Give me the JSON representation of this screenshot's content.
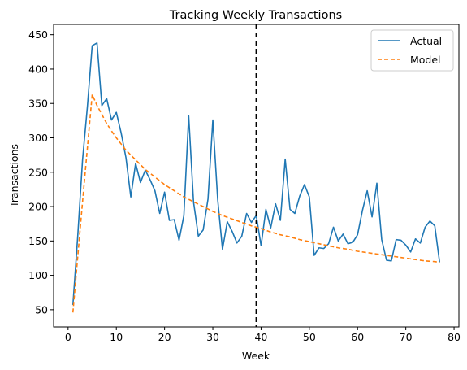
{
  "chart_data": {
    "type": "line",
    "title": "Tracking Weekly Transactions",
    "xlabel": "Week",
    "ylabel": "Transactions",
    "xlim": [
      -3,
      81
    ],
    "ylim": [
      25,
      465
    ],
    "xticks": [
      0,
      10,
      20,
      30,
      40,
      50,
      60,
      70,
      80
    ],
    "yticks": [
      50,
      100,
      150,
      200,
      250,
      300,
      350,
      400,
      450
    ],
    "grid": false,
    "legend_position": "top-right",
    "vline": {
      "x": 39,
      "style": "dashed",
      "color": "#000000"
    },
    "series": [
      {
        "name": "Actual",
        "style": "solid",
        "color": "#1f77b4",
        "x": [
          1,
          2,
          3,
          4,
          5,
          6,
          7,
          8,
          9,
          10,
          11,
          12,
          13,
          14,
          15,
          16,
          17,
          18,
          19,
          20,
          21,
          22,
          23,
          24,
          25,
          26,
          27,
          28,
          29,
          30,
          31,
          32,
          33,
          34,
          35,
          36,
          37,
          38,
          39,
          40,
          41,
          42,
          43,
          44,
          45,
          46,
          47,
          48,
          49,
          50,
          51,
          52,
          53,
          54,
          55,
          56,
          57,
          58,
          59,
          60,
          61,
          62,
          63,
          64,
          65,
          66,
          67,
          68,
          69,
          70,
          71,
          72,
          73,
          74,
          75,
          76,
          77
        ],
        "values": [
          57,
          157,
          268,
          345,
          434,
          438,
          347,
          357,
          326,
          337,
          307,
          271,
          214,
          263,
          235,
          253,
          239,
          223,
          190,
          221,
          180,
          181,
          151,
          187,
          332,
          207,
          157,
          166,
          211,
          326,
          211,
          138,
          178,
          164,
          147,
          157,
          190,
          177,
          187,
          143,
          196,
          169,
          204,
          180,
          269,
          196,
          190,
          215,
          232,
          214,
          129,
          140,
          139,
          146,
          170,
          150,
          160,
          146,
          148,
          159,
          194,
          223,
          185,
          234,
          152,
          122,
          121,
          152,
          151,
          144,
          134,
          153,
          147,
          170,
          179,
          172,
          119
        ]
      },
      {
        "name": "Model",
        "style": "dashed",
        "color": "#ff7f0e",
        "x": [
          1,
          2,
          3,
          4,
          5,
          6,
          7,
          8,
          9,
          10,
          12,
          14,
          16,
          18,
          20,
          22,
          24,
          26,
          28,
          30,
          32,
          34,
          36,
          38,
          40,
          42,
          44,
          46,
          48,
          50,
          52,
          54,
          56,
          58,
          60,
          62,
          64,
          66,
          68,
          70,
          72,
          74,
          76,
          77
        ],
        "values": [
          46,
          127,
          207,
          285,
          363,
          347,
          334,
          321,
          310,
          300,
          282,
          268,
          254,
          243,
          232,
          223,
          214,
          207,
          200,
          193,
          187,
          182,
          177,
          172,
          168,
          163,
          159,
          156,
          152,
          149,
          146,
          143,
          140,
          138,
          135,
          133,
          131,
          129,
          127,
          125,
          123,
          121,
          120,
          119
        ]
      }
    ]
  }
}
